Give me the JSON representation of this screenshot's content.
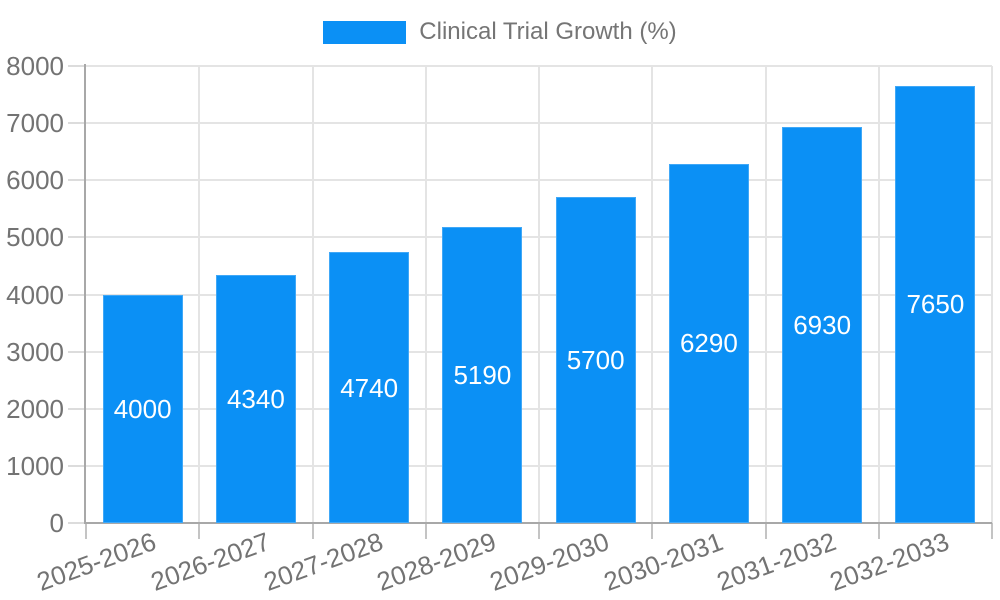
{
  "chart_data": {
    "type": "bar",
    "title": "",
    "xlabel": "",
    "ylabel": "",
    "categories": [
      "2025-2026",
      "2026-2027",
      "2027-2028",
      "2028-2029",
      "2029-2030",
      "2030-2031",
      "2031-2032",
      "2032-2033"
    ],
    "series": [
      {
        "name": "Clinical Trial Growth (%)",
        "values": [
          4000,
          4340,
          4740,
          5190,
          5700,
          6290,
          6930,
          7650
        ]
      }
    ],
    "ylim": [
      0,
      8000
    ],
    "yticks": [
      0,
      1000,
      2000,
      3000,
      4000,
      5000,
      6000,
      7000,
      8000
    ],
    "ytick_labels": [
      "0",
      "1000",
      "2000",
      "3000",
      "4000",
      "5000",
      "6000",
      "7000",
      "8000"
    ],
    "grid": true,
    "legend_position": "top-center",
    "value_labels": "inside-center",
    "x_label_rotation_deg": -20
  },
  "legend": {
    "label": "Clinical Trial Growth (%)"
  },
  "colors": {
    "bar": "#0b90f5",
    "grid": "#e4e4e4",
    "axis_line": "#a8a8a8",
    "y_tick": "#dcdcdc",
    "x_tick": "#c4c4c4",
    "tick_label": "#737373",
    "legend_label": "#757575",
    "value_label": "#ffffff",
    "background": "#ffffff"
  }
}
